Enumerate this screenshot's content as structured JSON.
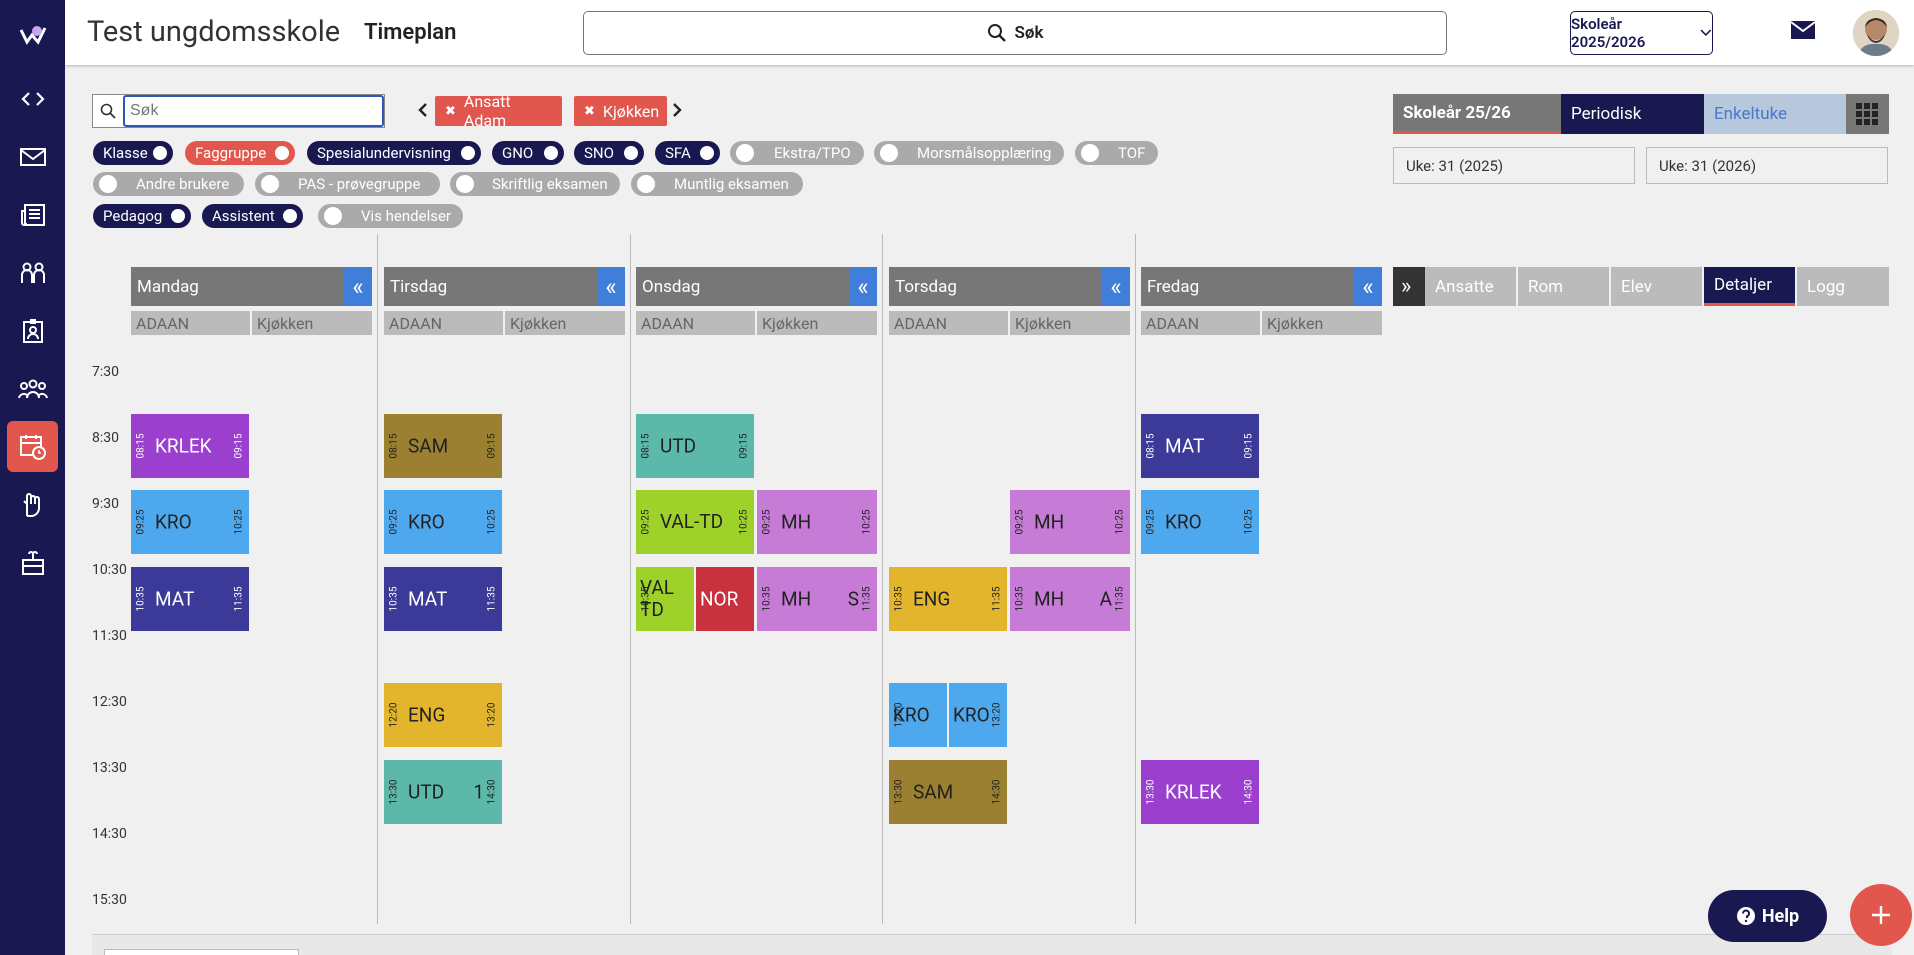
{
  "header": {
    "school_name": "Test ungdomsskole",
    "page_title": "Timeplan",
    "search_label": "Søk",
    "year_select": "Skoleår 2025/2026"
  },
  "sidebar": {
    "items": [
      "code-icon",
      "mail-icon",
      "newspaper-icon",
      "people-icon",
      "badge-icon",
      "group-icon",
      "schedule-icon",
      "hand-icon",
      "gift-icon"
    ],
    "active": "schedule-icon"
  },
  "filter": {
    "search_placeholder": "Søk",
    "tags": [
      "Ansatt Adam",
      "Kjøkken"
    ]
  },
  "pills": [
    {
      "label": "Klasse",
      "state": "on"
    },
    {
      "label": "Faggruppe",
      "state": "red"
    },
    {
      "label": "Spesialundervisning",
      "state": "on"
    },
    {
      "label": "GNO",
      "state": "on"
    },
    {
      "label": "SNO",
      "state": "on"
    },
    {
      "label": "SFA",
      "state": "on"
    },
    {
      "label": "Ekstra/TPO",
      "state": "off"
    },
    {
      "label": "Morsmålsopplæring",
      "state": "off"
    },
    {
      "label": "TOF",
      "state": "off"
    },
    {
      "label": "Andre brukere",
      "state": "off"
    },
    {
      "label": "PAS - prøvegruppe",
      "state": "off"
    },
    {
      "label": "Skriftlig eksamen",
      "state": "off"
    },
    {
      "label": "Muntlig eksamen",
      "state": "off"
    },
    {
      "label": "Pedagog",
      "state": "on"
    },
    {
      "label": "Assistent",
      "state": "on"
    },
    {
      "label": "Vis hendelser",
      "state": "off"
    }
  ],
  "days": [
    {
      "name": "Mandag",
      "cols": [
        "ADAAN",
        "Kjøkken"
      ]
    },
    {
      "name": "Tirsdag",
      "cols": [
        "ADAAN",
        "Kjøkken"
      ]
    },
    {
      "name": "Onsdag",
      "cols": [
        "ADAAN",
        "Kjøkken"
      ]
    },
    {
      "name": "Torsdag",
      "cols": [
        "ADAAN",
        "Kjøkken"
      ]
    },
    {
      "name": "Fredag",
      "cols": [
        "ADAAN",
        "Kjøkken"
      ]
    }
  ],
  "collapse_glyph": "«",
  "times": [
    "7:30",
    "8:30",
    "9:30",
    "10:30",
    "11:30",
    "12:30",
    "13:30",
    "14:30",
    "15:30"
  ],
  "events": [
    {
      "name": "KRLEK",
      "start": "08:15",
      "end": "09:15",
      "color": "#9b3fcf"
    },
    {
      "name": "KRO",
      "start": "09:25",
      "end": "10:25",
      "color": "#4ea8ee"
    },
    {
      "name": "MAT",
      "start": "10:35",
      "end": "11:35",
      "color": "#3b3a98"
    },
    {
      "name": "SAM",
      "start": "08:15",
      "end": "09:15",
      "color": "#9a8030"
    },
    {
      "name": "KRO",
      "start": "09:25",
      "end": "10:25",
      "color": "#4ea8ee"
    },
    {
      "name": "MAT",
      "start": "10:35",
      "end": "11:35",
      "color": "#3b3a98"
    },
    {
      "name": "ENG",
      "start": "12:20",
      "end": "13:20",
      "color": "#e3b52c"
    },
    {
      "name": "UTD",
      "start": "13:30",
      "end": "14:30",
      "color": "#5cb8a8",
      "extra": "1"
    },
    {
      "name": "UTD",
      "start": "08:15",
      "end": "09:15",
      "color": "#5cb8a8"
    },
    {
      "name": "VAL-TD",
      "start": "09:25",
      "end": "10:25",
      "color": "#9ed22a"
    },
    {
      "name": "MH",
      "start": "09:25",
      "end": "10:25",
      "color": "#c67bd6"
    },
    {
      "name": "VAL TD",
      "start": "10:35",
      "end": "",
      "color": "#9ed22a"
    },
    {
      "name": "NOR",
      "start": "",
      "end": "",
      "color": "#c8323f"
    },
    {
      "name": "MH",
      "start": "10:35",
      "end": "11:35",
      "color": "#c67bd6",
      "extra": "S"
    },
    {
      "name": "ENG",
      "start": "10:35",
      "end": "11:35",
      "color": "#e3b52c"
    },
    {
      "name": "MH",
      "start": "09:25",
      "end": "10:25",
      "color": "#c67bd6"
    },
    {
      "name": "MH",
      "start": "10:35",
      "end": "11:35",
      "color": "#c67bd6",
      "extra": "A"
    },
    {
      "name": "KRO",
      "start": "12:20",
      "end": "",
      "color": "#4ea8ee"
    },
    {
      "name": "KRO",
      "start": "",
      "end": "13:20",
      "color": "#4ea8ee"
    },
    {
      "name": "SAM",
      "start": "13:30",
      "end": "14:30",
      "color": "#9a8030"
    },
    {
      "name": "MAT",
      "start": "08:15",
      "end": "09:15",
      "color": "#3b3a98"
    },
    {
      "name": "KRO",
      "start": "09:25",
      "end": "10:25",
      "color": "#4ea8ee"
    },
    {
      "name": "KRLEK",
      "start": "13:30",
      "end": "14:30",
      "color": "#9b3fcf"
    }
  ],
  "right_panel": {
    "view_tabs": [
      "Skoleår 25/26",
      "Periodisk",
      "Enkeltuke"
    ],
    "week_from": "Uke: 31 (2025)",
    "week_to": "Uke: 31 (2026)",
    "expand_glyph": "»",
    "panel_tabs": [
      "Ansatte",
      "Rom",
      "Elev",
      "Detaljer",
      "Logg"
    ],
    "active_panel_tab": "Detaljer"
  },
  "help_label": "Help",
  "colors": {
    "navy": "#1a1850",
    "accent": "#e1574d",
    "blue": "#3f7fd9"
  }
}
